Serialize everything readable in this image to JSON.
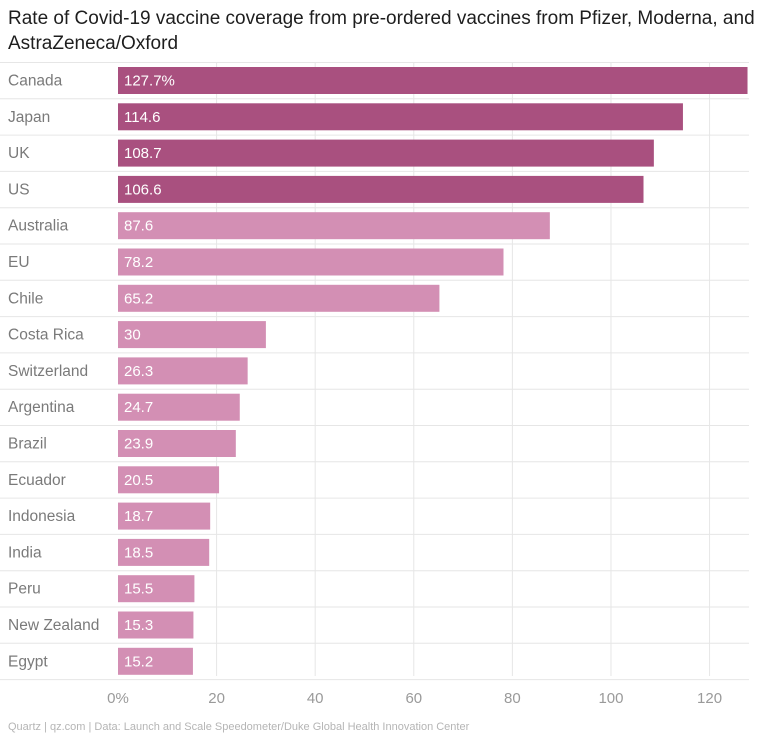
{
  "chart_data": {
    "type": "bar",
    "orientation": "horizontal",
    "title": "Rate of Covid-19 vaccine coverage from pre-ordered vaccines from Pfizer, Moderna, and AstraZeneca/Oxford",
    "categories": [
      "Canada",
      "Japan",
      "UK",
      "US",
      "Australia",
      "EU",
      "Chile",
      "Costa Rica",
      "Switzerland",
      "Argentina",
      "Brazil",
      "Ecuador",
      "Indonesia",
      "India",
      "Peru",
      "New Zealand",
      "Egypt"
    ],
    "values": [
      127.7,
      114.6,
      108.7,
      106.6,
      87.6,
      78.2,
      65.2,
      30,
      26.3,
      24.7,
      23.9,
      20.5,
      18.7,
      18.5,
      15.5,
      15.3,
      15.2
    ],
    "value_labels": [
      "127.7%",
      "114.6",
      "108.7",
      "106.6",
      "87.6",
      "78.2",
      "65.2",
      "30",
      "26.3",
      "24.7",
      "23.9",
      "20.5",
      "18.7",
      "18.5",
      "15.5",
      "15.3",
      "15.2"
    ],
    "xlim": [
      0,
      128
    ],
    "x_ticks": [
      0,
      20,
      40,
      60,
      80,
      100,
      120
    ],
    "x_tick_labels": [
      "0%",
      "20",
      "40",
      "60",
      "80",
      "100",
      "120"
    ],
    "grid": true,
    "colors": {
      "highlight": "#a9507f",
      "standard": "#d38fb4",
      "grid": "#e6e6e6",
      "label": "#7a7a7a",
      "value_text": "#ffffff"
    },
    "highlight_count": 4
  },
  "source": "Quartz | qz.com | Data: Launch and Scale Speedometer/Duke Global Health Innovation Center"
}
